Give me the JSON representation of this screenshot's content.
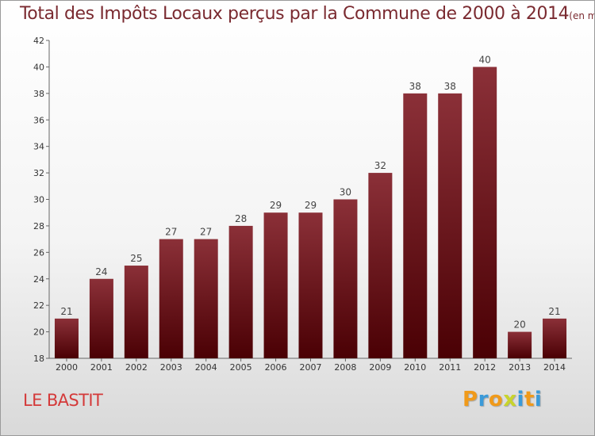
{
  "chart_data": {
    "type": "bar",
    "title": "Total des Impôts Locaux perçus par la Commune de 2000 à 2014",
    "unit_label": "(en milliers d'€)",
    "categories": [
      "2000",
      "2001",
      "2002",
      "2003",
      "2004",
      "2005",
      "2006",
      "2007",
      "2008",
      "2009",
      "2010",
      "2011",
      "2012",
      "2013",
      "2014"
    ],
    "values": [
      21,
      24,
      25,
      27,
      27,
      28,
      29,
      29,
      30,
      32,
      38,
      38,
      40,
      20,
      21
    ],
    "ylim": [
      18,
      42
    ],
    "yticks": [
      18,
      20,
      22,
      24,
      26,
      28,
      30,
      32,
      34,
      36,
      38,
      40,
      42
    ],
    "xlabel": "",
    "ylabel": "",
    "grid": false,
    "bar_color_top": "#8b3038",
    "bar_color_bottom": "#4a0004"
  },
  "footer": {
    "commune_name": "LE BASTIT",
    "logo_text": "Proxiti",
    "logo_letter_colors": [
      "#f09a1a",
      "#3a9ad9",
      "#f09a1a",
      "#c8d42c",
      "#3a9ad9",
      "#f09a1a",
      "#3a9ad9"
    ]
  }
}
